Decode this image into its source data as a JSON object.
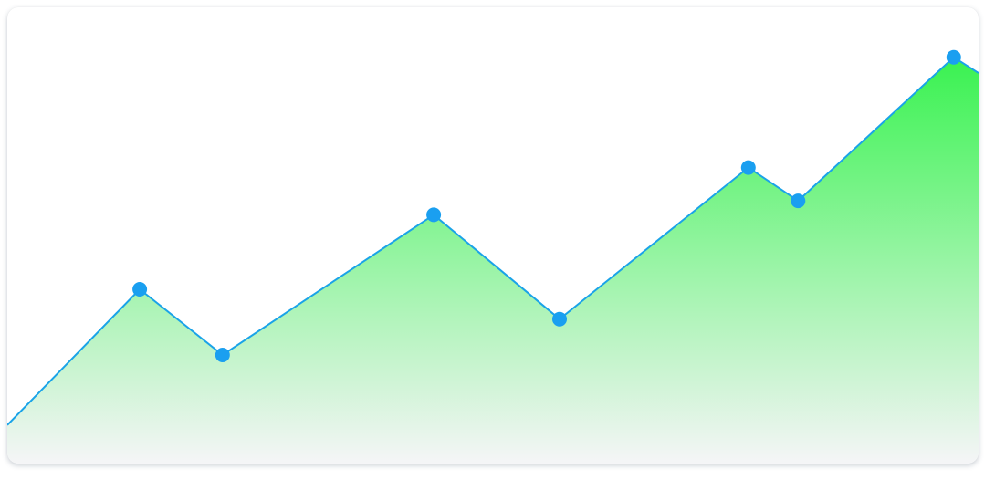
{
  "chart_data": {
    "type": "area",
    "title": "",
    "xlabel": "",
    "ylabel": "",
    "x": [
      0,
      1.6,
      2.6,
      5.15,
      6.67,
      8.95,
      9.55,
      11.43,
      11.73
    ],
    "y": [
      0.6,
      16.1,
      8.6,
      24.6,
      12.7,
      30.0,
      26.2,
      42.6,
      40.8
    ],
    "markers": [
      false,
      true,
      true,
      true,
      true,
      true,
      true,
      true,
      false
    ],
    "xlim": [
      0,
      11.73
    ],
    "ylim": [
      -3.8,
      48.3
    ],
    "grid": false,
    "legend": "none",
    "line_color": "#1aa3e8",
    "marker_color": "#1a9ff0",
    "fill_top_color": "#22f23c",
    "fill_bottom_color": "#f5f5f7"
  }
}
